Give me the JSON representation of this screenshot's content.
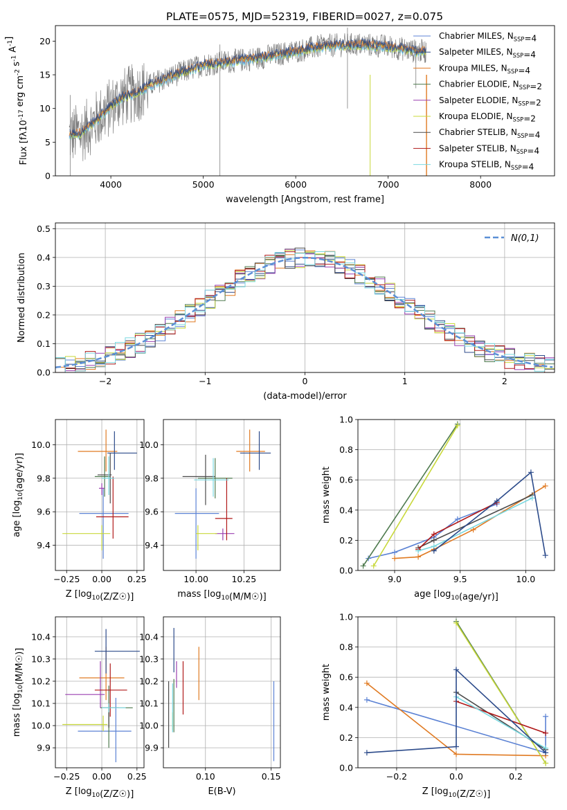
{
  "figure": {
    "title": "PLATE=0575, MJD=52319, FIBERID=0027, z=0.075"
  },
  "legend_entries": [
    {
      "label": "Chabrier MILES, N$_{SSP}$=4",
      "color": "#5b82d4"
    },
    {
      "label": "Salpeter MILES, N$_{SSP}$=4",
      "color": "#2b4a8a"
    },
    {
      "label": "Kroupa MILES, N$_{SSP}$=4",
      "color": "#e07a22"
    },
    {
      "label": "Chabrier ELODIE, N$_{SSP}$=2",
      "color": "#4e7a4e"
    },
    {
      "label": "Salpeter ELODIE, N$_{SSP}$=2",
      "color": "#9a3fb0"
    },
    {
      "label": "Kroupa ELODIE, N$_{SSP}$=2",
      "color": "#c8d83a"
    },
    {
      "label": "Chabrier STELIB, N$_{SSP}$=4",
      "color": "#4a4a4a"
    },
    {
      "label": "Salpeter STELIB, N$_{SSP}$=4",
      "color": "#b01818"
    },
    {
      "label": "Kroupa STELIB, N$_{SSP}$=4",
      "color": "#7ad8e0"
    }
  ],
  "chart_data": [
    {
      "type": "line",
      "name": "spectrum",
      "xlabel": "wavelength [Angstrom, rest frame]",
      "ylabel": "Flux [f$_\\lambda$10$^{-17}$ erg cm$^{-2}$ s$^{-1}$ A$^{-1}$]",
      "xlim": [
        3400,
        8800
      ],
      "ylim": [
        0,
        22.3
      ],
      "xticks": [
        4000,
        5000,
        6000,
        7000,
        8000
      ],
      "yticks": [
        0,
        5,
        10,
        15,
        20
      ],
      "continuum_x": [
        3550,
        3700,
        3900,
        4100,
        4300,
        4500,
        4800,
        5000,
        5300,
        5600,
        6000,
        6300,
        6700,
        7000,
        7300
      ],
      "continuum_y": [
        6,
        6.5,
        9,
        11.5,
        12.5,
        14,
        15.5,
        16.5,
        17,
        17.5,
        18.5,
        19.3,
        19.5,
        19.2,
        18.5
      ],
      "grid": false
    },
    {
      "type": "line",
      "name": "residual-histogram",
      "xlabel": "(data-model)/error",
      "ylabel": "Normed distribution",
      "xlim": [
        -2.5,
        2.5
      ],
      "ylim": [
        0,
        0.52
      ],
      "xticks": [
        -2,
        -1,
        0,
        1,
        2
      ],
      "xticklabels": [
        "−2",
        "−1",
        "0",
        "1",
        "2"
      ],
      "yticks": [
        0,
        0.1,
        0.2,
        0.3,
        0.4,
        0.5
      ],
      "yticklabels": [
        "0.0",
        "0.1",
        "0.2",
        "0.3",
        "0.4",
        "0.5"
      ],
      "legend": "$\\mathcal{N}(0,1)$",
      "gaussian_sigma": 1,
      "grid": true
    },
    {
      "type": "scatter",
      "name": "age-vs-z",
      "xlabel": "Z [log$_{10}$(Z/Z$_\\odot$)]",
      "ylabel": "age  [log$_{10}$(age/yr)]",
      "xlim": [
        -0.33,
        0.3
      ],
      "ylim": [
        9.25,
        10.15
      ],
      "xticks": [
        -0.25,
        0,
        0.25
      ],
      "xticklabels": [
        "−0.25",
        "0.00",
        "0.25"
      ],
      "yticks": [
        9.4,
        9.6,
        9.8,
        10.0
      ],
      "yticklabels": [
        "9.4",
        "9.6",
        "9.8",
        "10.0"
      ],
      "points": [
        {
          "x": 0.01,
          "y": 9.59,
          "xerr": [
            0.17,
            0.18
          ],
          "yerr": [
            0.27,
            0.15
          ],
          "c": 0
        },
        {
          "x": 0.03,
          "y": 9.96,
          "xerr": [
            0.2,
            0.08
          ],
          "yerr": [
            0.12,
            0.13
          ],
          "c": 2
        },
        {
          "x": 0.02,
          "y": 9.81,
          "xerr": [
            0.07,
            0.04
          ],
          "yerr": [
            0.12,
            0.12
          ],
          "c": 3
        },
        {
          "x": 0.0,
          "y": 9.74,
          "xerr": [
            0.02,
            0.02
          ],
          "yerr": [
            0.04,
            0.03
          ],
          "c": 4
        },
        {
          "x": 0.0,
          "y": 9.47,
          "xerr": [
            0.28,
            0.06
          ],
          "yerr": [
            0.1,
            0.05
          ],
          "c": 5
        },
        {
          "x": 0.06,
          "y": 9.82,
          "xerr": [
            0.09,
            0.01
          ],
          "yerr": [
            0.17,
            0.13
          ],
          "c": 6
        },
        {
          "x": 0.08,
          "y": 9.57,
          "xerr": [
            0.12,
            0.11
          ],
          "yerr": [
            0.13,
            0.24
          ],
          "c": 7
        },
        {
          "x": 0.05,
          "y": 9.8,
          "xerr": [
            0.05,
            0.04
          ],
          "yerr": [
            0.1,
            0.13
          ],
          "c": 8
        },
        {
          "x": 0.09,
          "y": 9.95,
          "xerr": [
            0.05,
            0.16
          ],
          "yerr": [
            0.1,
            0.13
          ],
          "c": 1
        }
      ],
      "grid": true
    },
    {
      "type": "scatter",
      "name": "age-vs-mass",
      "xlabel": "mass [log$_{10}$(M/M$_\\odot$)]",
      "ylabel": "",
      "xlim": [
        9.83,
        10.44
      ],
      "ylim": [
        9.25,
        10.15
      ],
      "xticks": [
        10.0,
        10.25
      ],
      "xticklabels": [
        "10.00",
        "10.25"
      ],
      "yticks": [
        9.4,
        9.6,
        9.8,
        10.0
      ],
      "yticklabels": [
        "9.4",
        "9.6",
        "9.8",
        "10.0"
      ],
      "points": [
        {
          "x": 10.0,
          "y": 9.59,
          "xerr": [
            0.11,
            0.12
          ],
          "yerr": [
            0.27,
            0.15
          ],
          "c": 0
        },
        {
          "x": 10.28,
          "y": 9.96,
          "xerr": [
            0.07,
            0.08
          ],
          "yerr": [
            0.12,
            0.13
          ],
          "c": 2
        },
        {
          "x": 10.1,
          "y": 9.8,
          "xerr": [
            0.09,
            0.09
          ],
          "yerr": [
            0.12,
            0.12
          ],
          "c": 3
        },
        {
          "x": 10.14,
          "y": 9.47,
          "xerr": [
            0.04,
            0.06
          ],
          "yerr": [
            0.04,
            0.03
          ],
          "c": 4
        },
        {
          "x": 10.01,
          "y": 9.47,
          "xerr": [
            0.01,
            0.1
          ],
          "yerr": [
            0.1,
            0.05
          ],
          "c": 5
        },
        {
          "x": 10.05,
          "y": 9.81,
          "xerr": [
            0.12,
            0.05
          ],
          "yerr": [
            0.17,
            0.13
          ],
          "c": 6
        },
        {
          "x": 10.16,
          "y": 9.56,
          "xerr": [
            0.06,
            0.03
          ],
          "yerr": [
            0.13,
            0.24
          ],
          "c": 7
        },
        {
          "x": 10.09,
          "y": 9.79,
          "xerr": [
            0.1,
            0.08
          ],
          "yerr": [
            0.1,
            0.13
          ],
          "c": 8
        },
        {
          "x": 10.33,
          "y": 9.95,
          "xerr": [
            0.1,
            0.06
          ],
          "yerr": [
            0.1,
            0.13
          ],
          "c": 1
        }
      ],
      "grid": true
    },
    {
      "type": "line",
      "name": "mass-weight-vs-age",
      "xlabel": "age  [log$_{10}$(age/yr)]",
      "ylabel": "mass weight",
      "xlim": [
        8.72,
        10.22
      ],
      "ylim": [
        0,
        1.0
      ],
      "xticks": [
        9.0,
        9.5,
        10.0
      ],
      "xticklabels": [
        "9.0",
        "9.5",
        "10.0"
      ],
      "yticks": [
        0,
        0.2,
        0.4,
        0.6,
        0.8,
        1.0
      ],
      "yticklabels": [
        "0.0",
        "0.2",
        "0.4",
        "0.6",
        "0.8",
        "1.0"
      ],
      "series": [
        {
          "c": 0,
          "x": [
            8.8,
            9.0,
            9.3,
            9.48,
            9.78
          ],
          "y": [
            0.08,
            0.12,
            0.22,
            0.34,
            0.44
          ]
        },
        {
          "c": 2,
          "x": [
            9.0,
            9.18,
            9.3,
            9.6,
            10.15
          ],
          "y": [
            0.08,
            0.09,
            0.14,
            0.27,
            0.56
          ]
        },
        {
          "c": 3,
          "x": [
            8.76,
            9.48
          ],
          "y": [
            0.03,
            0.97
          ]
        },
        {
          "c": 5,
          "x": [
            8.84,
            9.48
          ],
          "y": [
            0.03,
            0.96
          ]
        },
        {
          "c": 6,
          "x": [
            9.18,
            9.3,
            10.05
          ],
          "y": [
            0.15,
            0.2,
            0.5
          ]
        },
        {
          "c": 7,
          "x": [
            9.18,
            9.3,
            9.78
          ],
          "y": [
            0.14,
            0.24,
            0.45
          ]
        },
        {
          "c": 8,
          "x": [
            9.18,
            9.3,
            10.05
          ],
          "y": [
            0.13,
            0.16,
            0.48
          ]
        },
        {
          "c": 1,
          "x": [
            9.3,
            9.78,
            10.04,
            10.15
          ],
          "y": [
            0.13,
            0.46,
            0.65,
            0.1
          ]
        }
      ],
      "grid": true
    },
    {
      "type": "scatter",
      "name": "mass-vs-z",
      "xlabel": "Z [log$_{10}$(Z/Z$_\\odot$)]",
      "ylabel": "mass [log$_{10}$(M/M$_\\odot$)]",
      "xlim": [
        -0.33,
        0.3
      ],
      "ylim": [
        9.81,
        10.49
      ],
      "xticks": [
        -0.25,
        0,
        0.25
      ],
      "xticklabels": [
        "−0.25",
        "0.00",
        "0.25"
      ],
      "yticks": [
        9.9,
        10.0,
        10.1,
        10.2,
        10.3,
        10.4
      ],
      "yticklabels": [
        "9.9",
        "10.0",
        "10.1",
        "10.2",
        "10.3",
        "10.4"
      ],
      "points": [
        {
          "x": 0.1,
          "y": 9.975,
          "xerr": [
            0.27,
            0.11
          ],
          "yerr": [
            0.14,
            0.15
          ],
          "c": 0
        },
        {
          "x": 0.03,
          "y": 10.215,
          "xerr": [
            0.19,
            0.13
          ],
          "yerr": [
            0.1,
            0.14
          ],
          "c": 2
        },
        {
          "x": 0.05,
          "y": 10.08,
          "xerr": [
            0.06,
            0.17
          ],
          "yerr": [
            0.18,
            0.1
          ],
          "c": 3
        },
        {
          "x": -0.01,
          "y": 10.14,
          "xerr": [
            0.25,
            0.03
          ],
          "yerr": [
            0.06,
            0.15
          ],
          "c": 4
        },
        {
          "x": 0.01,
          "y": 10.005,
          "xerr": [
            0.29,
            0.03
          ],
          "yerr": [
            0.03,
            0.04
          ],
          "c": 5
        },
        {
          "x": 0.05,
          "y": 10.08,
          "xerr": [
            0.05,
            0.07
          ],
          "yerr": [
            0.09,
            0.02
          ],
          "c": 6
        },
        {
          "x": 0.06,
          "y": 10.16,
          "xerr": [
            0.11,
            0.12
          ],
          "yerr": [
            0.12,
            0.12
          ],
          "c": 7
        },
        {
          "x": 0.05,
          "y": 10.08,
          "xerr": [
            0.05,
            0.12
          ],
          "yerr": [
            0.02,
            0.02
          ],
          "c": 8
        },
        {
          "x": 0.03,
          "y": 10.335,
          "xerr": [
            0.08,
            0.24
          ],
          "yerr": [
            0.1,
            0.1
          ],
          "c": 1
        }
      ],
      "grid": true
    },
    {
      "type": "scatter",
      "name": "mass-vs-ebv",
      "xlabel": "E(B-V)",
      "ylabel": "",
      "xlim": [
        0.068,
        0.157
      ],
      "ylim": [
        9.81,
        10.49
      ],
      "xticks": [
        0.1,
        0.15
      ],
      "xticklabels": [
        "0.10",
        "0.15"
      ],
      "yticks": [
        9.9,
        10.0,
        10.1,
        10.2,
        10.3,
        10.4
      ],
      "yticklabels": [
        "9.9",
        "10.0",
        "10.1",
        "10.2",
        "10.3",
        "10.4"
      ],
      "points": [
        {
          "x": 0.152,
          "y": 10.02,
          "yerr": [
            0.18,
            0.18
          ],
          "c": 0
        },
        {
          "x": 0.095,
          "y": 10.235,
          "yerr": [
            0.12,
            0.12
          ],
          "c": 2
        },
        {
          "x": 0.076,
          "y": 10.09,
          "yerr": [
            0.12,
            0.12
          ],
          "c": 3
        },
        {
          "x": 0.078,
          "y": 10.23,
          "yerr": [
            0.06,
            0.06
          ],
          "c": 4
        },
        {
          "x": 0.075,
          "y": 10.02,
          "yerr": [
            0.04,
            0.04
          ],
          "c": 5
        },
        {
          "x": 0.072,
          "y": 10.05,
          "yerr": [
            0.15,
            0.15
          ],
          "c": 6
        },
        {
          "x": 0.083,
          "y": 10.17,
          "yerr": [
            0.12,
            0.12
          ],
          "c": 7
        },
        {
          "x": 0.075,
          "y": 10.08,
          "yerr": [
            0.11,
            0.11
          ],
          "c": 8
        },
        {
          "x": 0.076,
          "y": 10.34,
          "yerr": [
            0.1,
            0.1
          ],
          "c": 1
        }
      ],
      "grid": true
    },
    {
      "type": "line",
      "name": "mass-weight-vs-z",
      "xlabel": "Z [log$_{10}$(Z/Z$_\\odot$)]",
      "ylabel": "mass weight",
      "xlim": [
        -0.33,
        0.33
      ],
      "ylim": [
        0,
        1.0
      ],
      "xticks": [
        -0.2,
        0,
        0.2
      ],
      "xticklabels": [
        "−0.2",
        "0.0",
        "0.2"
      ],
      "yticks": [
        0,
        0.2,
        0.4,
        0.6,
        0.8,
        1.0
      ],
      "yticklabels": [
        "0.0",
        "0.2",
        "0.4",
        "0.6",
        "0.8",
        "1.0"
      ],
      "series": [
        {
          "c": 0,
          "x": [
            -0.3,
            0.3,
            0.3
          ],
          "y": [
            0.45,
            0.1,
            0.34
          ]
        },
        {
          "c": 2,
          "x": [
            -0.3,
            0.0,
            0.3
          ],
          "y": [
            0.56,
            0.09,
            0.08
          ]
        },
        {
          "c": 3,
          "x": [
            0.0,
            0.3
          ],
          "y": [
            0.97,
            0.03
          ]
        },
        {
          "c": 5,
          "x": [
            0.0,
            0.3
          ],
          "y": [
            0.96,
            0.03
          ]
        },
        {
          "c": 6,
          "x": [
            0.0,
            0.3
          ],
          "y": [
            0.5,
            0.12
          ]
        },
        {
          "c": 7,
          "x": [
            0.0,
            0.3
          ],
          "y": [
            0.44,
            0.23
          ]
        },
        {
          "c": 8,
          "x": [
            0.0,
            0.3
          ],
          "y": [
            0.47,
            0.13
          ]
        },
        {
          "c": 1,
          "x": [
            -0.3,
            0.0,
            0.0,
            0.3
          ],
          "y": [
            0.1,
            0.14,
            0.65,
            0.1
          ]
        }
      ],
      "grid": true
    }
  ]
}
